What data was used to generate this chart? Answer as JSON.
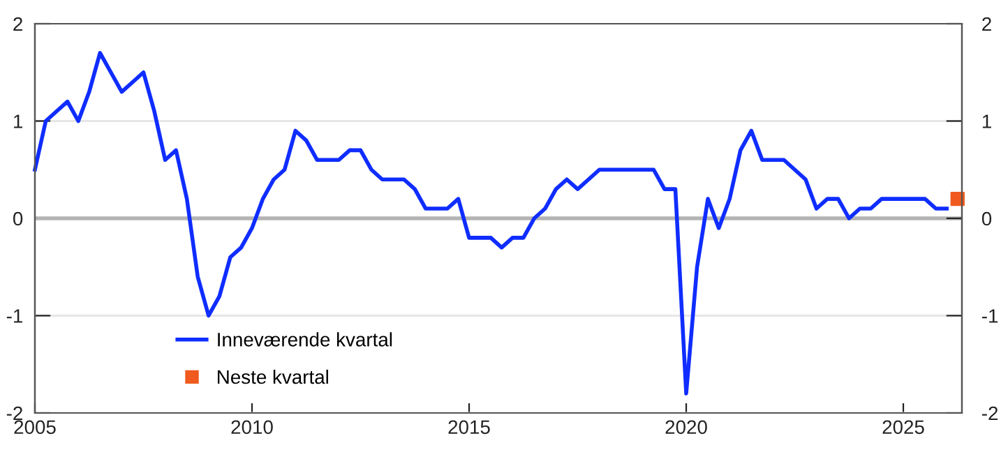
{
  "chart_data": {
    "type": "line",
    "xlim": [
      2005,
      2026.35
    ],
    "xticks": [
      2005,
      2010,
      2015,
      2020,
      2025
    ],
    "ylim": [
      -2,
      2
    ],
    "yticks": [
      -2,
      -1,
      0,
      1,
      2
    ],
    "y2lim": [
      -2,
      2
    ],
    "y2ticks": [
      -2,
      -1,
      0,
      1,
      2
    ],
    "grid": "y",
    "legend": "bottom left",
    "line_style": "solid",
    "ref_lines": [
      {
        "axis": "y",
        "value": 0,
        "color": "#b4b4b4"
      }
    ],
    "series": [
      {
        "name": "Inneværende kvartal",
        "color": "#0f2dff",
        "marker": "none",
        "x": [
          2005,
          2005.25,
          2005.5,
          2005.75,
          2006,
          2006.25,
          2006.5,
          2006.75,
          2007,
          2007.25,
          2007.5,
          2007.75,
          2008,
          2008.25,
          2008.5,
          2008.75,
          2009,
          2009.25,
          2009.5,
          2009.75,
          2010,
          2010.25,
          2010.5,
          2010.75,
          2011,
          2011.25,
          2011.5,
          2011.75,
          2012,
          2012.25,
          2012.5,
          2012.75,
          2013,
          2013.25,
          2013.5,
          2013.75,
          2014,
          2014.25,
          2014.5,
          2014.75,
          2015,
          2015.25,
          2015.5,
          2015.75,
          2016,
          2016.25,
          2016.5,
          2016.75,
          2017,
          2017.25,
          2017.5,
          2017.75,
          2018,
          2018.25,
          2018.5,
          2018.75,
          2019,
          2019.25,
          2019.5,
          2019.75,
          2020,
          2020.25,
          2020.5,
          2020.75,
          2021,
          2021.25,
          2021.5,
          2021.75,
          2022,
          2022.25,
          2022.5,
          2022.75,
          2023,
          2023.25,
          2023.5,
          2023.75,
          2024,
          2024.25,
          2024.5,
          2024.75,
          2025,
          2025.25,
          2025.5,
          2025.75,
          2026
        ],
        "values": [
          0.5,
          1.0,
          1.1,
          1.2,
          1.0,
          1.3,
          1.7,
          1.5,
          1.3,
          1.4,
          1.5,
          1.1,
          0.6,
          0.7,
          0.2,
          -0.6,
          -1.0,
          -0.8,
          -0.4,
          -0.3,
          -0.1,
          0.2,
          0.4,
          0.5,
          0.9,
          0.8,
          0.6,
          0.6,
          0.6,
          0.7,
          0.7,
          0.5,
          0.4,
          0.4,
          0.4,
          0.3,
          0.1,
          0.1,
          0.1,
          0.2,
          -0.2,
          -0.2,
          -0.2,
          -0.3,
          -0.2,
          -0.2,
          0.0,
          0.1,
          0.3,
          0.4,
          0.3,
          0.4,
          0.5,
          0.5,
          0.5,
          0.5,
          0.5,
          0.5,
          0.3,
          0.3,
          -1.8,
          -0.5,
          0.2,
          -0.1,
          0.2,
          0.7,
          0.9,
          0.6,
          0.6,
          0.6,
          0.5,
          0.4,
          0.1,
          0.2,
          0.2,
          0.0,
          0.1,
          0.1,
          0.2,
          0.2,
          0.2,
          0.2,
          0.2,
          0.1,
          0.1
        ]
      },
      {
        "name": "Neste kvartal",
        "type": "scatter",
        "color": "#f05a1e",
        "marker": "square",
        "x": [
          2026.25
        ],
        "values": [
          0.2
        ]
      }
    ]
  }
}
